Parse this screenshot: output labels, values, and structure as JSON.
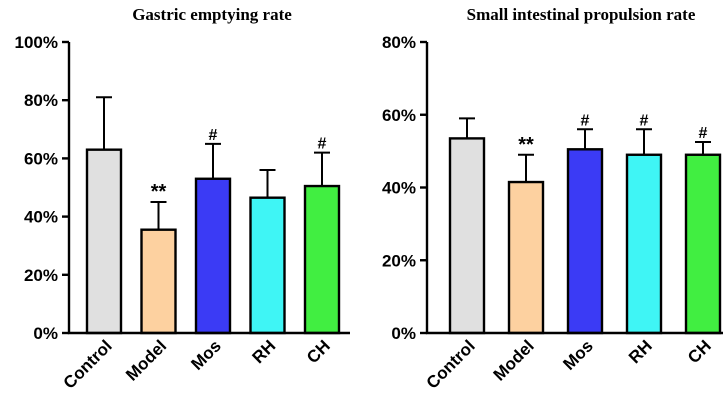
{
  "chart_data": [
    {
      "type": "bar",
      "title": "Gastric emptying rate",
      "categories": [
        "Control",
        "Model",
        "Mos",
        "RH",
        "CH"
      ],
      "values": [
        63,
        35.5,
        53,
        46.5,
        50.5
      ],
      "errors": [
        18,
        9.5,
        12,
        9.5,
        11.5
      ],
      "annotations": [
        "",
        "**",
        "#",
        "",
        "#"
      ],
      "colors": [
        "#e0e0e0",
        "#fdd1a0",
        "#3b3bf5",
        "#3ff5f5",
        "#41ee41"
      ],
      "ylim": [
        0,
        100
      ],
      "yticks": [
        0,
        20,
        40,
        60,
        80,
        100
      ],
      "ytick_labels": [
        "0%",
        "20%",
        "40%",
        "60%",
        "80%",
        "100%"
      ],
      "xlabel": "",
      "ylabel": ""
    },
    {
      "type": "bar",
      "title": "Small intestinal propulsion rate",
      "categories": [
        "Control",
        "Model",
        "Mos",
        "RH",
        "CH"
      ],
      "values": [
        53.5,
        41.5,
        50.5,
        49,
        49
      ],
      "errors": [
        5.5,
        7.5,
        5.5,
        7,
        3.5
      ],
      "annotations": [
        "",
        "**",
        "#",
        "#",
        "#"
      ],
      "colors": [
        "#e0e0e0",
        "#fdd1a0",
        "#3b3bf5",
        "#3ff5f5",
        "#41ee41"
      ],
      "ylim": [
        0,
        80
      ],
      "yticks": [
        0,
        20,
        40,
        60,
        80
      ],
      "ytick_labels": [
        "0%",
        "20%",
        "40%",
        "60%",
        "80%"
      ],
      "xlabel": "",
      "ylabel": ""
    }
  ]
}
